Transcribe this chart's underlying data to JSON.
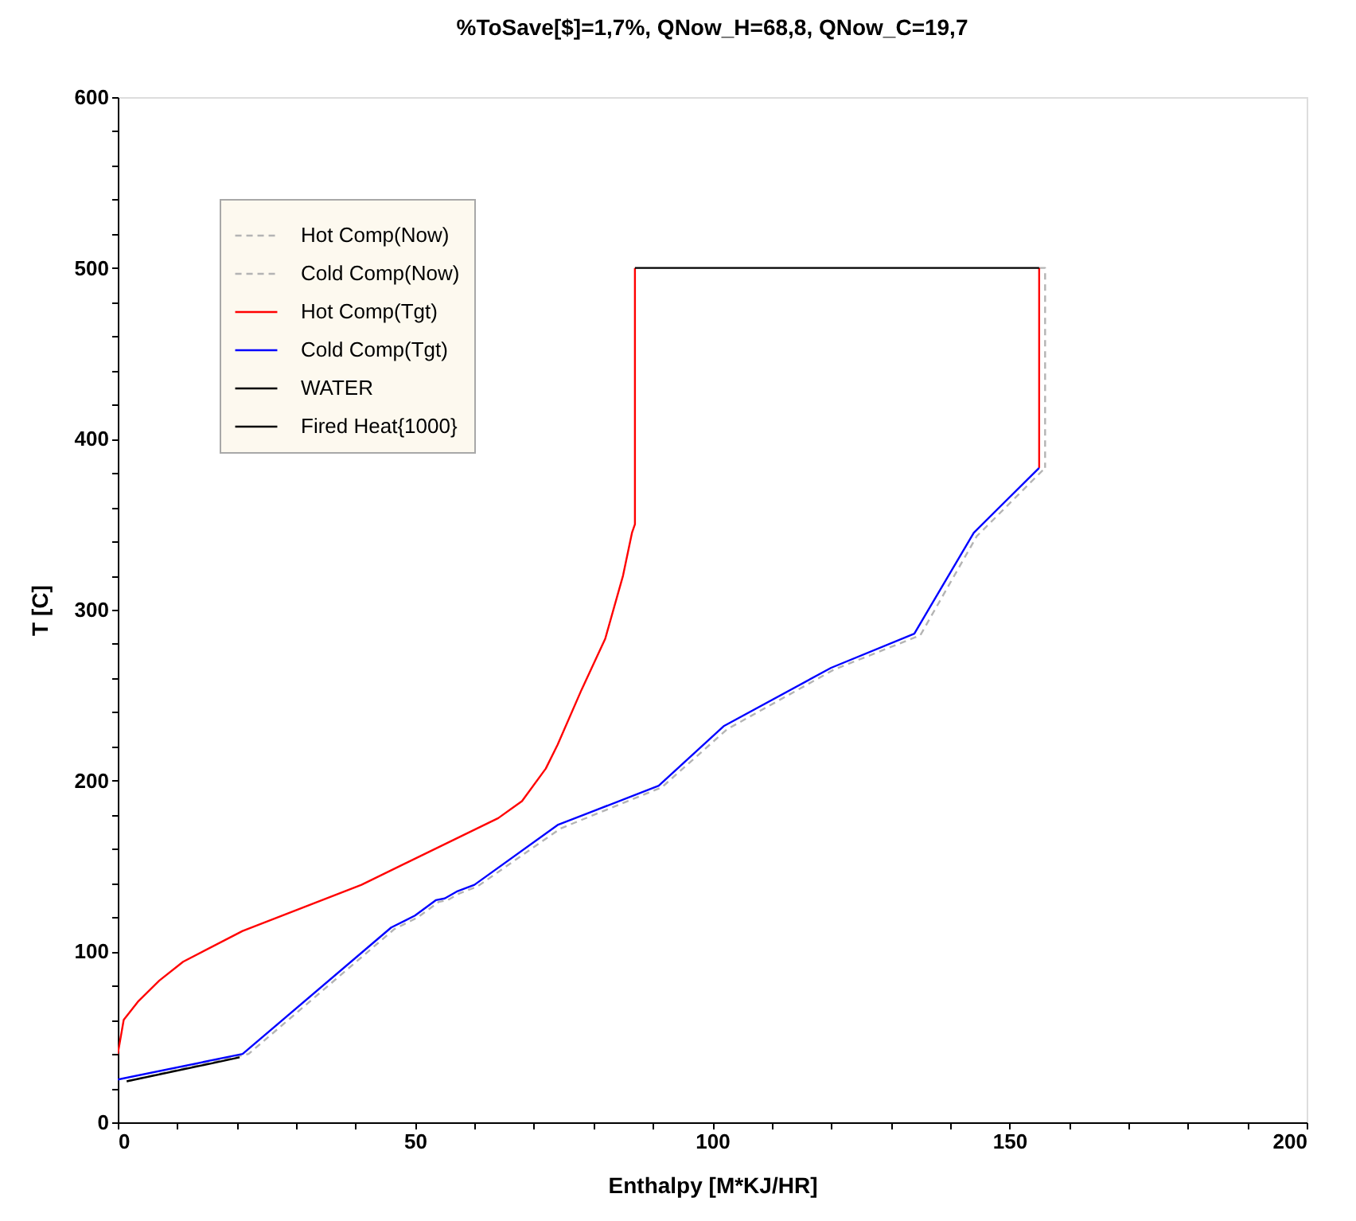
{
  "chart_data": {
    "type": "line",
    "title": "%ToSave[$]=1,7%, QNow_H=68,8, QNow_C=19,7",
    "xlabel": "Enthalpy [M*KJ/HR]",
    "ylabel": "T [C]",
    "xlim": [
      0,
      200
    ],
    "ylim": [
      0,
      600
    ],
    "xticks": [
      0,
      {
        "value": 10,
        "label": null
      },
      {
        "value": 20,
        "label": null
      },
      {
        "value": 30,
        "label": null
      },
      {
        "value": 40,
        "label": null
      },
      50,
      {
        "value": 60,
        "label": null
      },
      {
        "value": 70,
        "label": null
      },
      {
        "value": 80,
        "label": null
      },
      {
        "value": 90,
        "label": null
      },
      100,
      {
        "value": 110,
        "label": null
      },
      {
        "value": 120,
        "label": null
      },
      {
        "value": 130,
        "label": null
      },
      {
        "value": 140,
        "label": null
      },
      150,
      {
        "value": 160,
        "label": null
      },
      {
        "value": 170,
        "label": null
      },
      {
        "value": 180,
        "label": null
      },
      {
        "value": 190,
        "label": null
      },
      200
    ],
    "yticks": [
      0,
      {
        "value": 20,
        "label": null
      },
      {
        "value": 40,
        "label": null
      },
      {
        "value": 60,
        "label": null
      },
      {
        "value": 80,
        "label": null
      },
      100,
      {
        "value": 120,
        "label": null
      },
      {
        "value": 140,
        "label": null
      },
      {
        "value": 160,
        "label": null
      },
      {
        "value": 180,
        "label": null
      },
      200,
      {
        "value": 220,
        "label": null
      },
      {
        "value": 240,
        "label": null
      },
      {
        "value": 260,
        "label": null
      },
      {
        "value": 280,
        "label": null
      },
      300,
      {
        "value": 320,
        "label": null
      },
      {
        "value": 340,
        "label": null
      },
      {
        "value": 360,
        "label": null
      },
      {
        "value": 380,
        "label": null
      },
      400,
      {
        "value": 420,
        "label": null
      },
      {
        "value": 440,
        "label": null
      },
      {
        "value": 460,
        "label": null
      },
      {
        "value": 480,
        "label": null
      },
      500,
      {
        "value": 520,
        "label": null
      },
      {
        "value": 540,
        "label": null
      },
      {
        "value": 560,
        "label": null
      },
      {
        "value": 580,
        "label": null
      },
      600
    ],
    "legend": "top left",
    "series": [
      {
        "name": "Hot Comp(Now)",
        "color": "#b4b4b4",
        "line_style": "dashed",
        "x": [
          155,
          156,
          156
        ],
        "values": [
          500,
          500,
          383
        ]
      },
      {
        "name": "Cold Comp(Now)",
        "color": "#b4b4b4",
        "line_style": "dashed",
        "x": [
          1.5,
          22,
          46.5,
          50.5,
          54,
          55.5,
          57.5,
          60.5,
          74.5,
          91.5,
          102.5,
          120.5,
          135,
          144.5,
          156
        ],
        "values": [
          24,
          40,
          113,
          120,
          129,
          130,
          134,
          138,
          172,
          196,
          230,
          265,
          285,
          343,
          383
        ]
      },
      {
        "name": "Hot Comp(Tgt)",
        "color": "#ff0000",
        "x": [
          0,
          1,
          3.5,
          7,
          11,
          21,
          41,
          64,
          68,
          72,
          74,
          78,
          82,
          85,
          86.5,
          87,
          87,
          121,
          155,
          155
        ],
        "values": [
          40,
          60,
          71,
          83,
          94,
          112,
          139,
          178,
          188,
          207,
          221,
          253,
          283,
          320,
          345,
          350,
          500,
          null,
          500,
          383
        ]
      },
      {
        "name": "Cold Comp(Tgt)",
        "color": "#0000ff",
        "x": [
          0,
          21,
          46,
          50,
          53.5,
          55,
          57,
          60,
          74,
          91,
          102,
          120,
          134,
          144,
          155
        ],
        "values": [
          25,
          40,
          114,
          121,
          130,
          131,
          135,
          139,
          174,
          197,
          232,
          266,
          286,
          345,
          383
        ]
      },
      {
        "name": "WATER",
        "color": "#000000",
        "x": [
          1.5,
          20.5
        ],
        "values": [
          24,
          38
        ]
      },
      {
        "name": "Fired Heat{1000}",
        "color": "#000000",
        "x": [
          87,
          155
        ],
        "values": [
          500,
          500
        ]
      }
    ]
  }
}
